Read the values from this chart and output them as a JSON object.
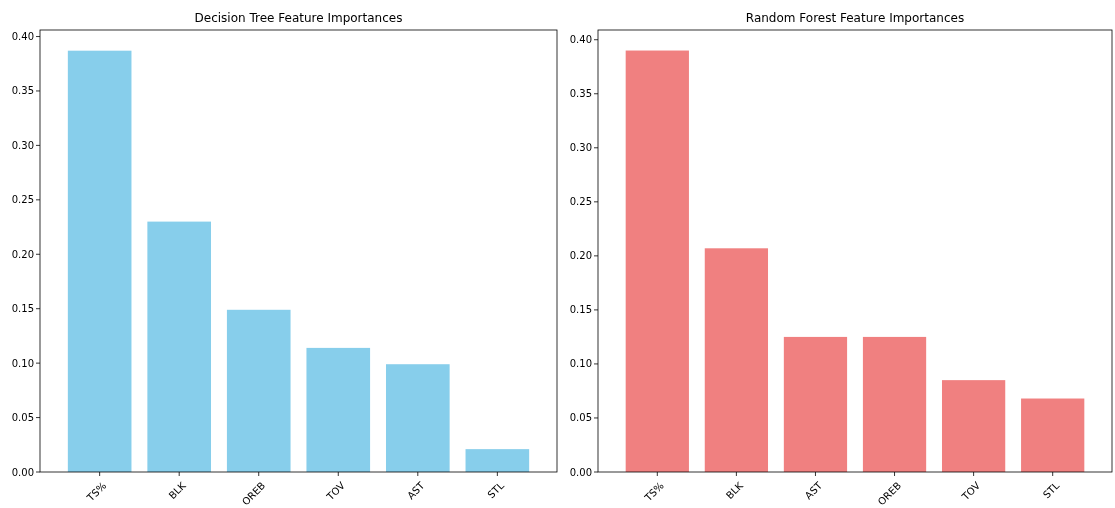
{
  "chart_data": [
    {
      "type": "bar",
      "title": "Decision Tree Feature Importances",
      "categories": [
        "TS%",
        "BLK",
        "OREB",
        "TOV",
        "AST",
        "STL"
      ],
      "values": [
        0.387,
        0.23,
        0.149,
        0.114,
        0.099,
        0.021
      ],
      "color": "#87ceeb",
      "ylim": [
        0,
        0.406
      ],
      "yticks": [
        {
          "value": 0,
          "label": "0.00"
        },
        {
          "value": 0.05,
          "label": "0.05"
        },
        {
          "value": 0.1,
          "label": "0.10"
        },
        {
          "value": 0.15,
          "label": "0.15"
        },
        {
          "value": 0.2,
          "label": "0.20"
        },
        {
          "value": 0.25,
          "label": "0.25"
        },
        {
          "value": 0.3,
          "label": "0.30"
        },
        {
          "value": 0.35,
          "label": "0.35"
        },
        {
          "value": 0.4,
          "label": "0.40"
        }
      ]
    },
    {
      "type": "bar",
      "title": "Random Forest Feature Importances",
      "categories": [
        "TS%",
        "BLK",
        "AST",
        "OREB",
        "TOV",
        "STL"
      ],
      "values": [
        0.39,
        0.207,
        0.125,
        0.125,
        0.085,
        0.068
      ],
      "color": "#f08080",
      "ylim": [
        0,
        0.409
      ],
      "yticks": [
        {
          "value": 0,
          "label": "0.00"
        },
        {
          "value": 0.05,
          "label": "0.05"
        },
        {
          "value": 0.1,
          "label": "0.10"
        },
        {
          "value": 0.15,
          "label": "0.15"
        },
        {
          "value": 0.2,
          "label": "0.20"
        },
        {
          "value": 0.25,
          "label": "0.25"
        },
        {
          "value": 0.3,
          "label": "0.30"
        },
        {
          "value": 0.35,
          "label": "0.35"
        },
        {
          "value": 0.4,
          "label": "0.40"
        }
      ]
    }
  ]
}
